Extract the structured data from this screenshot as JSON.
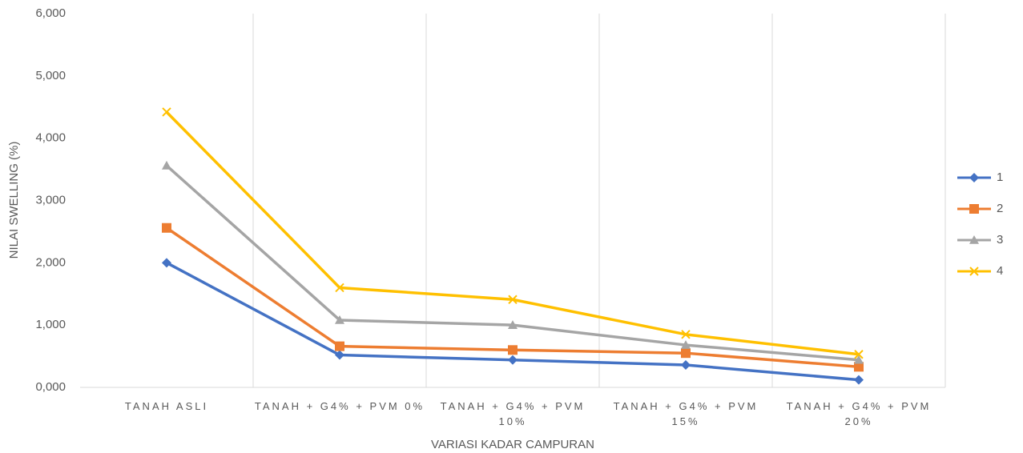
{
  "chart_data": {
    "type": "line",
    "x_label": "VARIASI KADAR CAMPURAN",
    "y_label": "NILAI SWELLING (%)",
    "categories": [
      "TANAH ASLI",
      "TANAH + G4% + PVM 0%",
      "TANAH + G4% + PVM 10%",
      "TANAH + G4% + PVM 15%",
      "TANAH + G4% + PVM 20%"
    ],
    "series": [
      {
        "name": "1",
        "color": "#4472c4",
        "marker": "diamond",
        "values": [
          2.0,
          0.52,
          0.44,
          0.36,
          0.12
        ]
      },
      {
        "name": "2",
        "color": "#ed7d31",
        "marker": "square",
        "values": [
          2.56,
          0.66,
          0.6,
          0.55,
          0.33
        ]
      },
      {
        "name": "3",
        "color": "#a5a5a5",
        "marker": "triangle",
        "values": [
          3.56,
          1.08,
          1.0,
          0.68,
          0.44
        ]
      },
      {
        "name": "4",
        "color": "#ffc000",
        "marker": "x",
        "values": [
          4.42,
          1.6,
          1.41,
          0.85,
          0.53
        ]
      }
    ],
    "ylim": [
      0,
      6
    ],
    "yticks": [
      {
        "value": 0,
        "label": "0,000"
      },
      {
        "value": 1,
        "label": "1,000"
      },
      {
        "value": 2,
        "label": "2,000"
      },
      {
        "value": 3,
        "label": "3,000"
      },
      {
        "value": 4,
        "label": "4,000"
      },
      {
        "value": 5,
        "label": "5,000"
      },
      {
        "value": 6,
        "label": "6,000"
      }
    ],
    "grid": "vertical",
    "legend": "right"
  }
}
